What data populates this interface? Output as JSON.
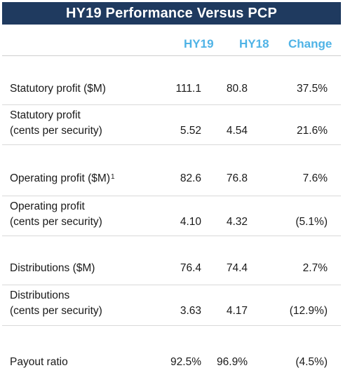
{
  "title": "HY19 Performance Versus PCP",
  "headers": {
    "hy19": "HY19",
    "hy18": "HY18",
    "change": "Change"
  },
  "rows": [
    {
      "label_line1": "Statutory profit ($M)",
      "label_line2": "",
      "footnote": "",
      "hy19": "111.1",
      "hy18": "80.8",
      "change": "37.5%"
    },
    {
      "label_line1": "Statutory profit",
      "label_line2": "(cents per security)",
      "footnote": "",
      "hy19": "5.52",
      "hy18": "4.54",
      "change": "21.6%"
    },
    {
      "label_line1": "Operating profit ($M)",
      "label_line2": "",
      "footnote": "1",
      "hy19": "82.6",
      "hy18": "76.8",
      "change": "7.6%"
    },
    {
      "label_line1": "Operating profit",
      "label_line2": "(cents per security)",
      "footnote": "",
      "hy19": "4.10",
      "hy18": "4.32",
      "change": "(5.1%)"
    },
    {
      "label_line1": "Distributions ($M)",
      "label_line2": "",
      "footnote": "",
      "hy19": "76.4",
      "hy18": "74.4",
      "change": "2.7%"
    },
    {
      "label_line1": "Distributions",
      "label_line2": "(cents per security)",
      "footnote": "",
      "hy19": "3.63",
      "hy18": "4.17",
      "change": "(12.9%)"
    },
    {
      "label_line1": "Payout ratio",
      "label_line2": "",
      "footnote": "",
      "hy19": "92.5%",
      "hy18": "96.9%",
      "change": "(4.5%)"
    }
  ]
}
